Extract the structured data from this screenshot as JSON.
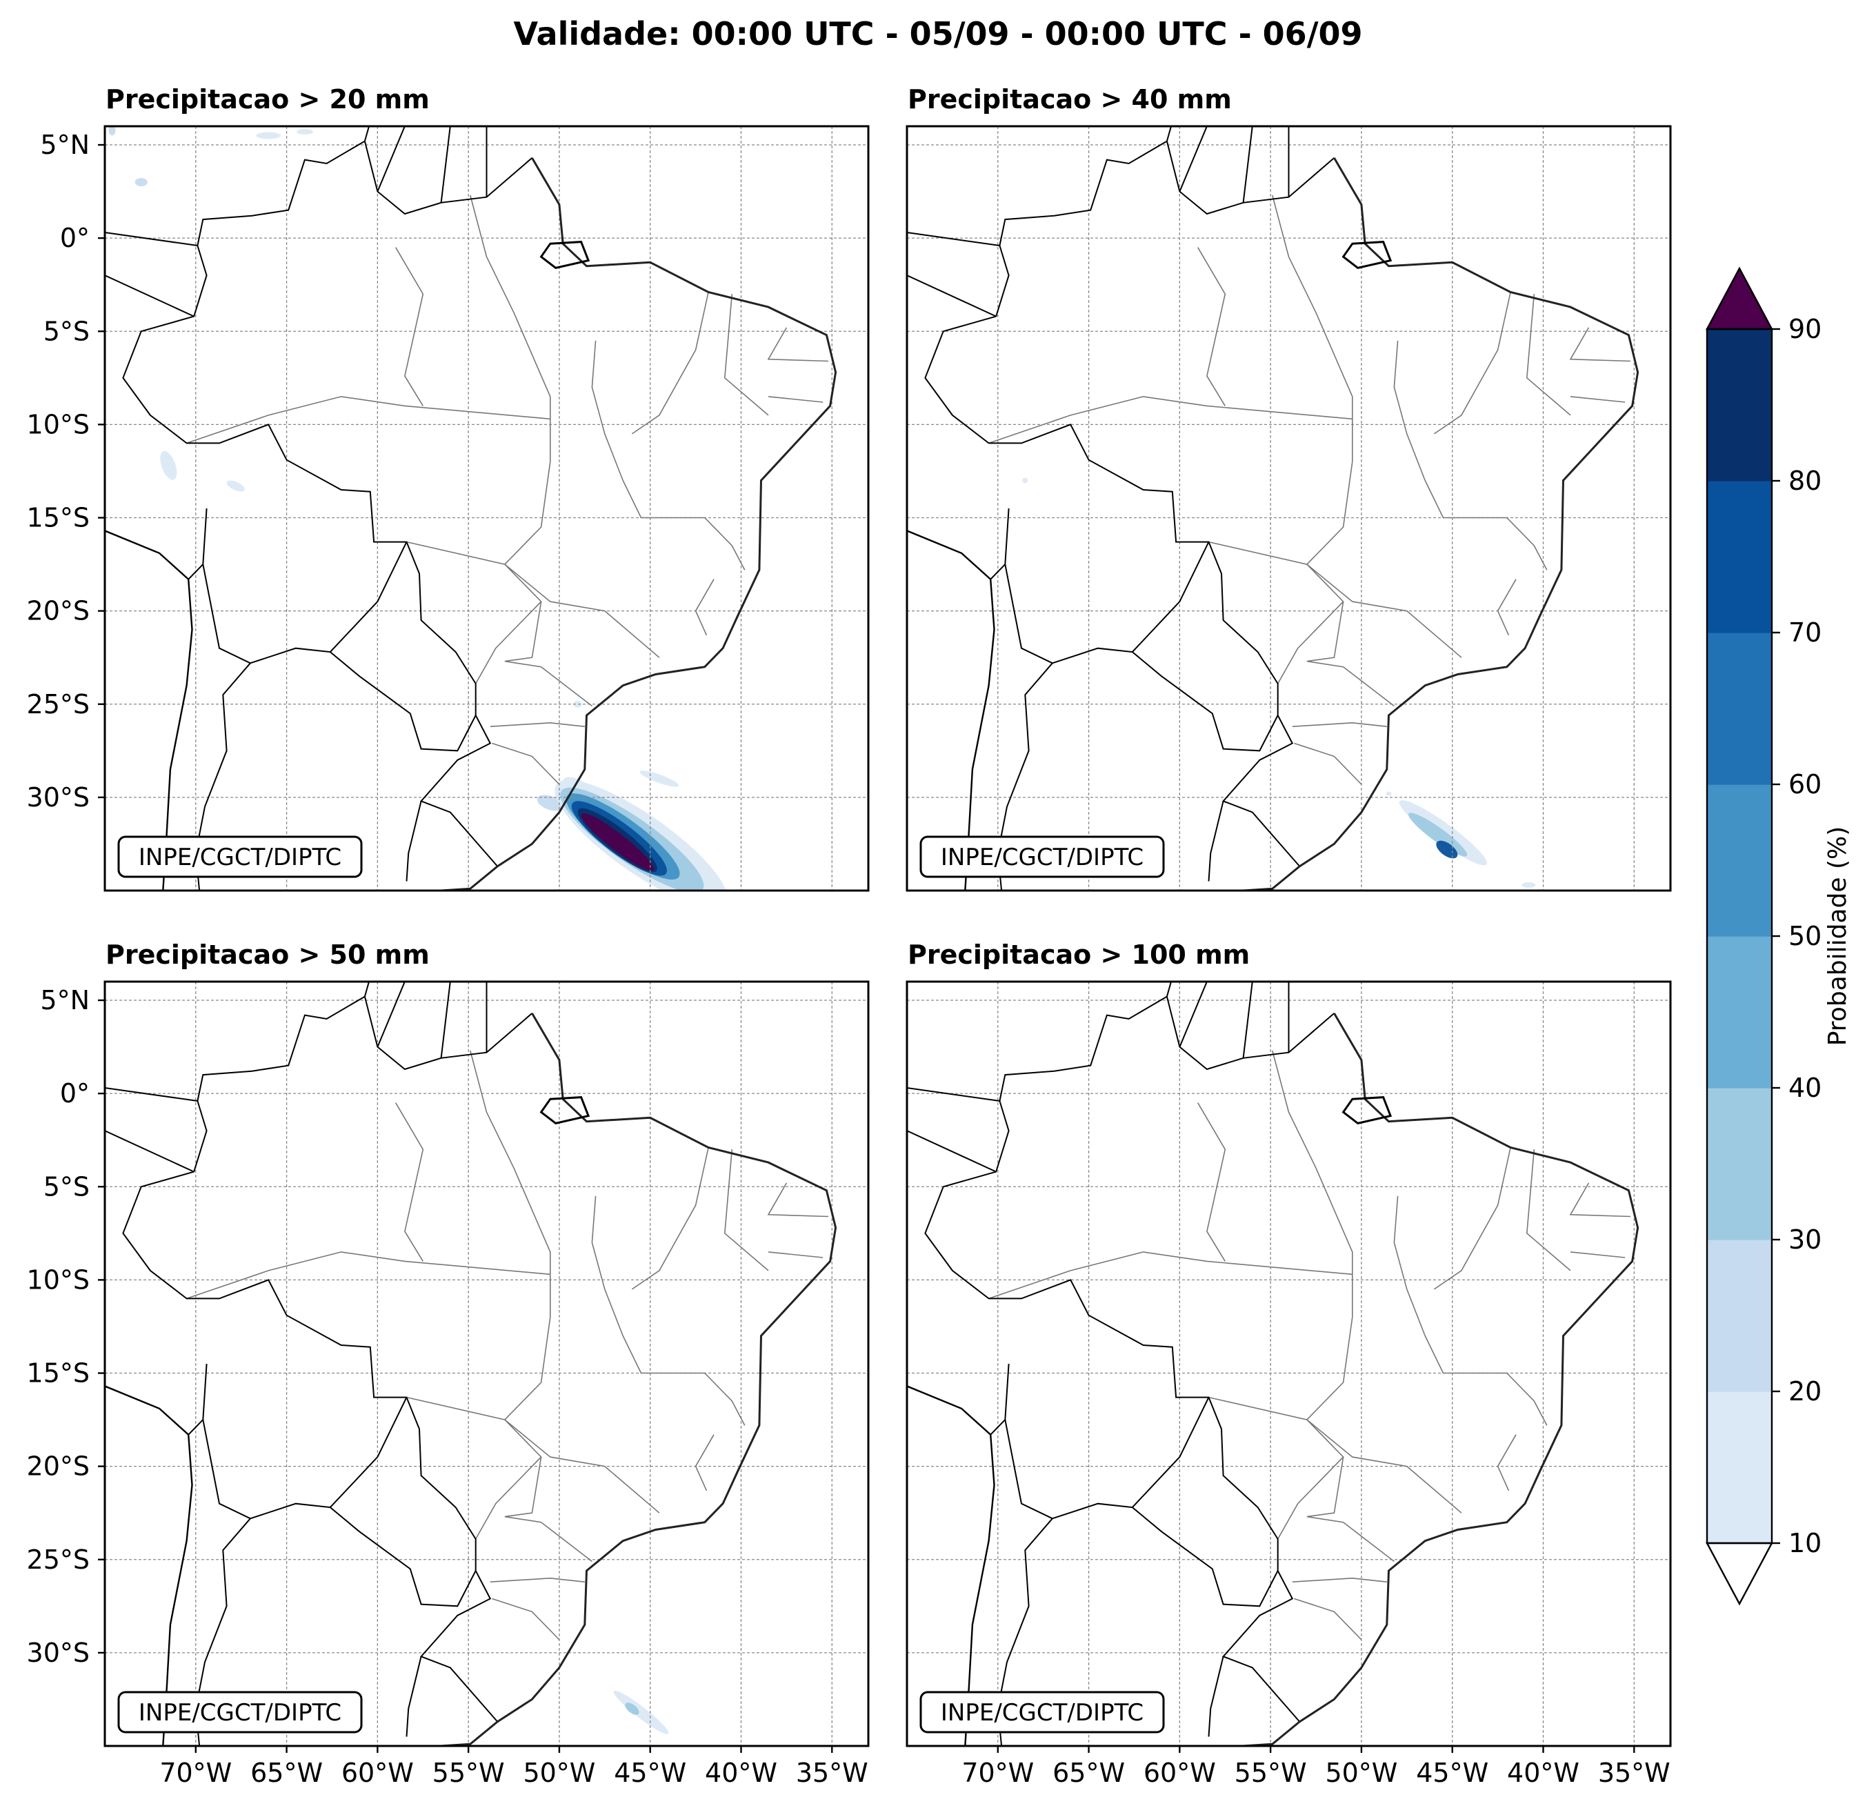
{
  "figure": {
    "title": "Validade: 00:00 UTC - 05/09 - 00:00 UTC - 06/09",
    "credit": "INPE/CGCT/DIPTC"
  },
  "axes": {
    "lat_labels": [
      "5°N",
      "0°",
      "5°S",
      "10°S",
      "15°S",
      "20°S",
      "25°S",
      "30°S"
    ],
    "lat_values": [
      5,
      0,
      -5,
      -10,
      -15,
      -20,
      -25,
      -30
    ],
    "lon_labels": [
      "70°W",
      "65°W",
      "60°W",
      "55°W",
      "50°W",
      "45°W",
      "40°W",
      "35°W"
    ],
    "lon_values": [
      -70,
      -65,
      -60,
      -55,
      -50,
      -45,
      -40,
      -35
    ],
    "lon_range": [
      -75,
      -33
    ],
    "lat_range": [
      -35,
      6
    ],
    "grid": "on"
  },
  "panels": [
    {
      "title": "Precipitacao > 20 mm",
      "max_probability": 90
    },
    {
      "title": "Precipitacao > 40 mm",
      "max_probability": 80
    },
    {
      "title": "Precipitacao > 50 mm",
      "max_probability": 30
    },
    {
      "title": "Precipitacao > 100 mm",
      "max_probability": 0
    }
  ],
  "colorbar": {
    "label": "Probabilidade (%)",
    "ticks": [
      "10",
      "20",
      "30",
      "40",
      "50",
      "60",
      "70",
      "80",
      "90"
    ],
    "colors": [
      "#dbe9f6",
      "#c6dbef",
      "#9ecae1",
      "#6baed6",
      "#4292c6",
      "#2171b5",
      "#08519c",
      "#08306b"
    ],
    "over_color": "#4d004b",
    "under_color": "#ffffff"
  }
}
